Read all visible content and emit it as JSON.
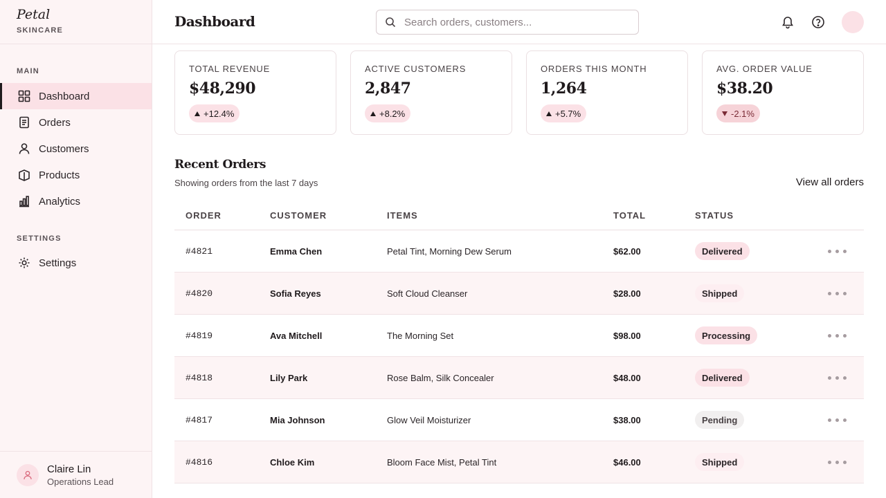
{
  "brand": {
    "logo": "Petal",
    "subtitle": "SKINCARE"
  },
  "sidebar": {
    "sections": [
      {
        "title": "MAIN",
        "items": [
          {
            "label": "Dashboard",
            "icon": "grid-icon",
            "active": true
          },
          {
            "label": "Orders",
            "icon": "document-icon"
          },
          {
            "label": "Customers",
            "icon": "user-icon"
          },
          {
            "label": "Products",
            "icon": "package-icon"
          },
          {
            "label": "Analytics",
            "icon": "bar-chart-icon"
          }
        ]
      },
      {
        "title": "SETTINGS",
        "items": [
          {
            "label": "Settings",
            "icon": "gear-icon"
          }
        ]
      }
    ],
    "user": {
      "name": "Claire Lin",
      "role": "Operations Lead"
    }
  },
  "header": {
    "title": "Dashboard",
    "search_placeholder": "Search orders, customers...",
    "icons": [
      "bell-icon",
      "help-icon"
    ]
  },
  "stats": [
    {
      "label": "TOTAL REVENUE",
      "value": "$48,290",
      "change": "+12.4%",
      "trend": "up"
    },
    {
      "label": "ACTIVE CUSTOMERS",
      "value": "2,847",
      "change": "+8.2%",
      "trend": "up"
    },
    {
      "label": "ORDERS THIS MONTH",
      "value": "1,264",
      "change": "+5.7%",
      "trend": "up"
    },
    {
      "label": "AVG. ORDER VALUE",
      "value": "$38.20",
      "change": "-2.1%",
      "trend": "down"
    }
  ],
  "recent_orders": {
    "title": "Recent Orders",
    "subtitle": "Showing orders from the last 7 days",
    "view_all": "View all orders",
    "columns": [
      "ORDER",
      "CUSTOMER",
      "ITEMS",
      "TOTAL",
      "STATUS"
    ],
    "rows": [
      {
        "order": "#4821",
        "customer": "Emma Chen",
        "items": "Petal Tint, Morning Dew Serum",
        "total": "$62.00",
        "status": "Delivered"
      },
      {
        "order": "#4820",
        "customer": "Sofia Reyes",
        "items": "Soft Cloud Cleanser",
        "total": "$28.00",
        "status": "Shipped"
      },
      {
        "order": "#4819",
        "customer": "Ava Mitchell",
        "items": "The Morning Set",
        "total": "$98.00",
        "status": "Processing"
      },
      {
        "order": "#4818",
        "customer": "Lily Park",
        "items": "Rose Balm, Silk Concealer",
        "total": "$48.00",
        "status": "Delivered"
      },
      {
        "order": "#4817",
        "customer": "Mia Johnson",
        "items": "Glow Veil Moisturizer",
        "total": "$38.00",
        "status": "Pending"
      },
      {
        "order": "#4816",
        "customer": "Chloe Kim",
        "items": "Bloom Face Mist, Petal Tint",
        "total": "$46.00",
        "status": "Shipped"
      }
    ],
    "status_colors": {
      "Delivered": "#fbe1e6",
      "Shipped": "#fdeef1",
      "Processing": "#fbe1e6",
      "Pending": "#f1efef"
    }
  }
}
